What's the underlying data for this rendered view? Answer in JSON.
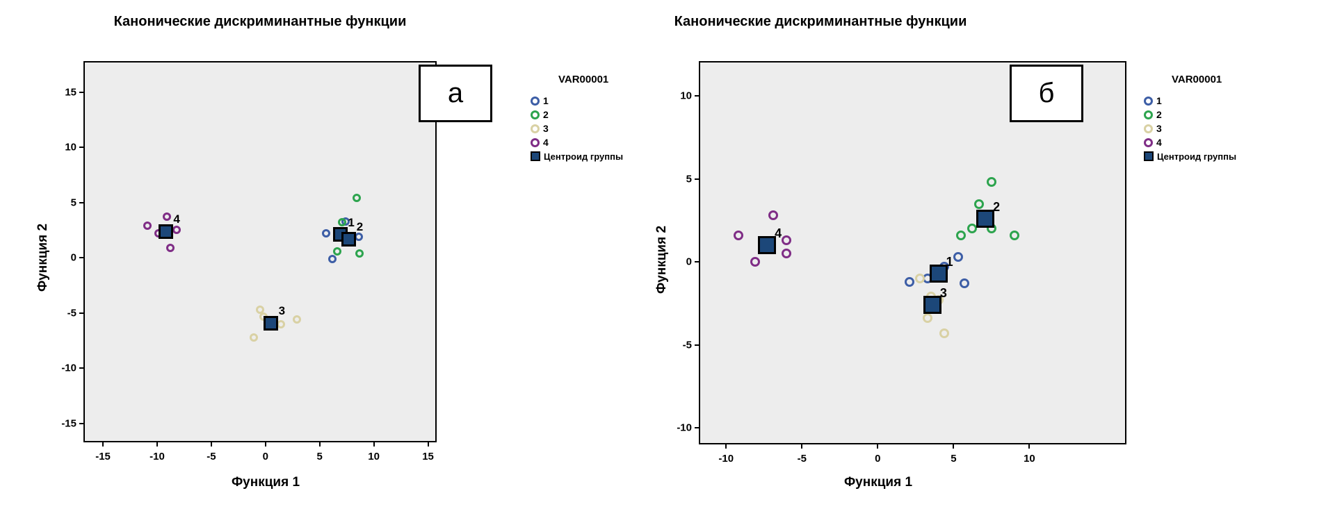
{
  "figure": {
    "background": "#FFFFFF"
  },
  "legend": {
    "title": "VAR00001",
    "items": [
      {
        "label": "1",
        "marker": "circle",
        "color": "#3D5EA6"
      },
      {
        "label": "2",
        "marker": "circle",
        "color": "#2DA44E"
      },
      {
        "label": "3",
        "marker": "circle",
        "color": "#D9D1A4"
      },
      {
        "label": "4",
        "marker": "circle",
        "color": "#7F2D86"
      },
      {
        "label": "Центроид группы",
        "marker": "square",
        "color": "#1C4779"
      }
    ]
  },
  "colors": {
    "group1": "#3D5EA6",
    "group2": "#2DA44E",
    "group3": "#D9D1A4",
    "group4": "#7F2D86",
    "centroid_fill": "#1C4779",
    "plot_background": "#EDEDED",
    "axis_color": "#000000"
  },
  "chart_data": [
    {
      "type": "scatter",
      "corner_label": "а",
      "title": "Канонические дискриминантные функции",
      "xlabel": "Функция 1",
      "ylabel": "Функция 2",
      "xlim": [
        -16.8,
        15.8
      ],
      "ylim": [
        -16.7,
        17.8
      ],
      "xticks": [
        -15,
        -10,
        -5,
        0,
        5,
        10,
        15
      ],
      "yticks": [
        -15,
        -10,
        -5,
        0,
        5,
        10,
        15
      ],
      "grid": false,
      "legend_position": "right",
      "groups": [
        {
          "name": "1",
          "color_key": "group1",
          "points": [
            [
              5.6,
              2.2
            ],
            [
              7.4,
              3.3
            ],
            [
              6.2,
              -0.1
            ],
            [
              8.6,
              1.9
            ]
          ],
          "centroid": [
            6.9,
            2.1
          ]
        },
        {
          "name": "2",
          "color_key": "group2",
          "points": [
            [
              7.1,
              3.2
            ],
            [
              8.4,
              5.4
            ],
            [
              6.6,
              0.6
            ],
            [
              8.7,
              0.4
            ]
          ],
          "centroid": [
            7.7,
            1.7
          ]
        },
        {
          "name": "3",
          "color_key": "group3",
          "points": [
            [
              -0.5,
              -4.7
            ],
            [
              -0.2,
              -5.3
            ],
            [
              1.4,
              -6.0
            ],
            [
              -1.1,
              -7.2
            ],
            [
              2.9,
              -5.6
            ]
          ],
          "centroid": [
            0.5,
            -5.9
          ]
        },
        {
          "name": "4",
          "color_key": "group4",
          "points": [
            [
              -9.1,
              3.7
            ],
            [
              -10.9,
              2.9
            ],
            [
              -9.9,
              2.2
            ],
            [
              -8.2,
              2.5
            ],
            [
              -8.8,
              0.9
            ]
          ],
          "centroid": [
            -9.2,
            2.4
          ]
        }
      ]
    },
    {
      "type": "scatter",
      "corner_label": "б",
      "title": "Канонические дискриминантные функции",
      "xlabel": "Функция 1",
      "ylabel": "Функция 2",
      "xlim": [
        -11.8,
        16.4
      ],
      "ylim": [
        -11.0,
        12.1
      ],
      "xticks": [
        -10,
        -5,
        0,
        5,
        10
      ],
      "yticks": [
        -10,
        -5,
        0,
        5,
        10
      ],
      "grid": false,
      "legend_position": "right",
      "groups": [
        {
          "name": "1",
          "color_key": "group1",
          "points": [
            [
              5.3,
              0.3
            ],
            [
              4.4,
              -0.3
            ],
            [
              3.3,
              -1.0
            ],
            [
              2.1,
              -1.2
            ],
            [
              5.7,
              -1.3
            ]
          ],
          "centroid": [
            4.0,
            -0.7
          ]
        },
        {
          "name": "2",
          "color_key": "group2",
          "points": [
            [
              7.5,
              4.8
            ],
            [
              6.7,
              3.5
            ],
            [
              6.2,
              2.0
            ],
            [
              5.5,
              1.6
            ],
            [
              7.5,
              2.0
            ],
            [
              9.0,
              1.6
            ]
          ],
          "centroid": [
            7.1,
            2.6
          ]
        },
        {
          "name": "3",
          "color_key": "group3",
          "points": [
            [
              2.8,
              -1.0
            ],
            [
              3.5,
              -2.1
            ],
            [
              4.0,
              -2.3
            ],
            [
              3.3,
              -3.4
            ],
            [
              4.4,
              -4.3
            ]
          ],
          "centroid": [
            3.6,
            -2.6
          ]
        },
        {
          "name": "4",
          "color_key": "group4",
          "points": [
            [
              -9.2,
              1.6
            ],
            [
              -6.9,
              2.8
            ],
            [
              -6.0,
              1.3
            ],
            [
              -6.0,
              0.5
            ],
            [
              -8.1,
              0.0
            ]
          ],
          "centroid": [
            -7.3,
            1.0
          ]
        }
      ]
    }
  ]
}
